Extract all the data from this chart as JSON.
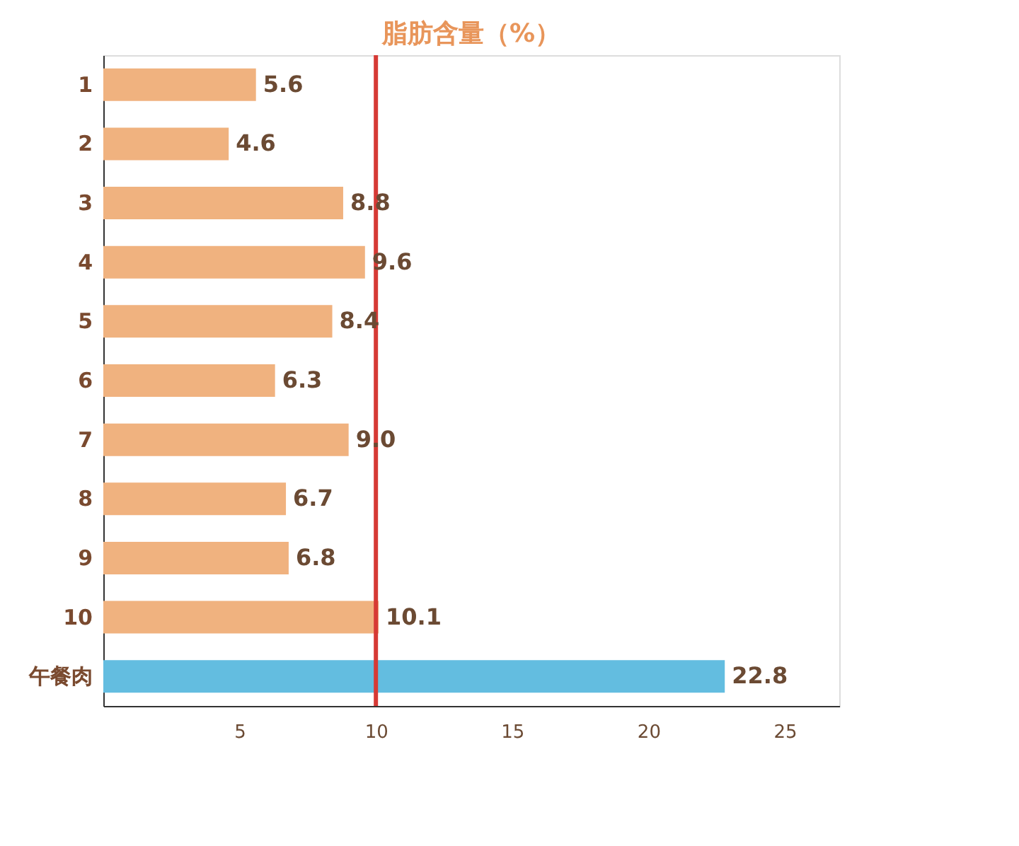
{
  "chart_data": {
    "type": "bar",
    "orientation": "horizontal",
    "title": "脂肪含量（%）",
    "categories": [
      "1",
      "2",
      "3",
      "4",
      "5",
      "6",
      "7",
      "8",
      "9",
      "10",
      "午餐肉"
    ],
    "values": [
      5.6,
      4.6,
      8.8,
      9.6,
      8.4,
      6.3,
      9.0,
      6.7,
      6.8,
      10.1,
      22.8
    ],
    "value_labels": [
      "5.6",
      "4.6",
      "8.8",
      "9.6",
      "8.4",
      "6.3",
      "9.0",
      "6.7",
      "6.8",
      "10.1",
      "22.8"
    ],
    "colors": [
      "#f0b27f",
      "#f0b27f",
      "#f0b27f",
      "#f0b27f",
      "#f0b27f",
      "#f0b27f",
      "#f0b27f",
      "#f0b27f",
      "#f0b27f",
      "#f0b27f",
      "#63bde0"
    ],
    "xlim": [
      0,
      27
    ],
    "xticks": [
      5,
      10,
      15,
      20,
      25
    ],
    "grid": false,
    "ref_lines": [
      {
        "axis": "x",
        "value": 10,
        "color": "#d63a35"
      }
    ]
  }
}
